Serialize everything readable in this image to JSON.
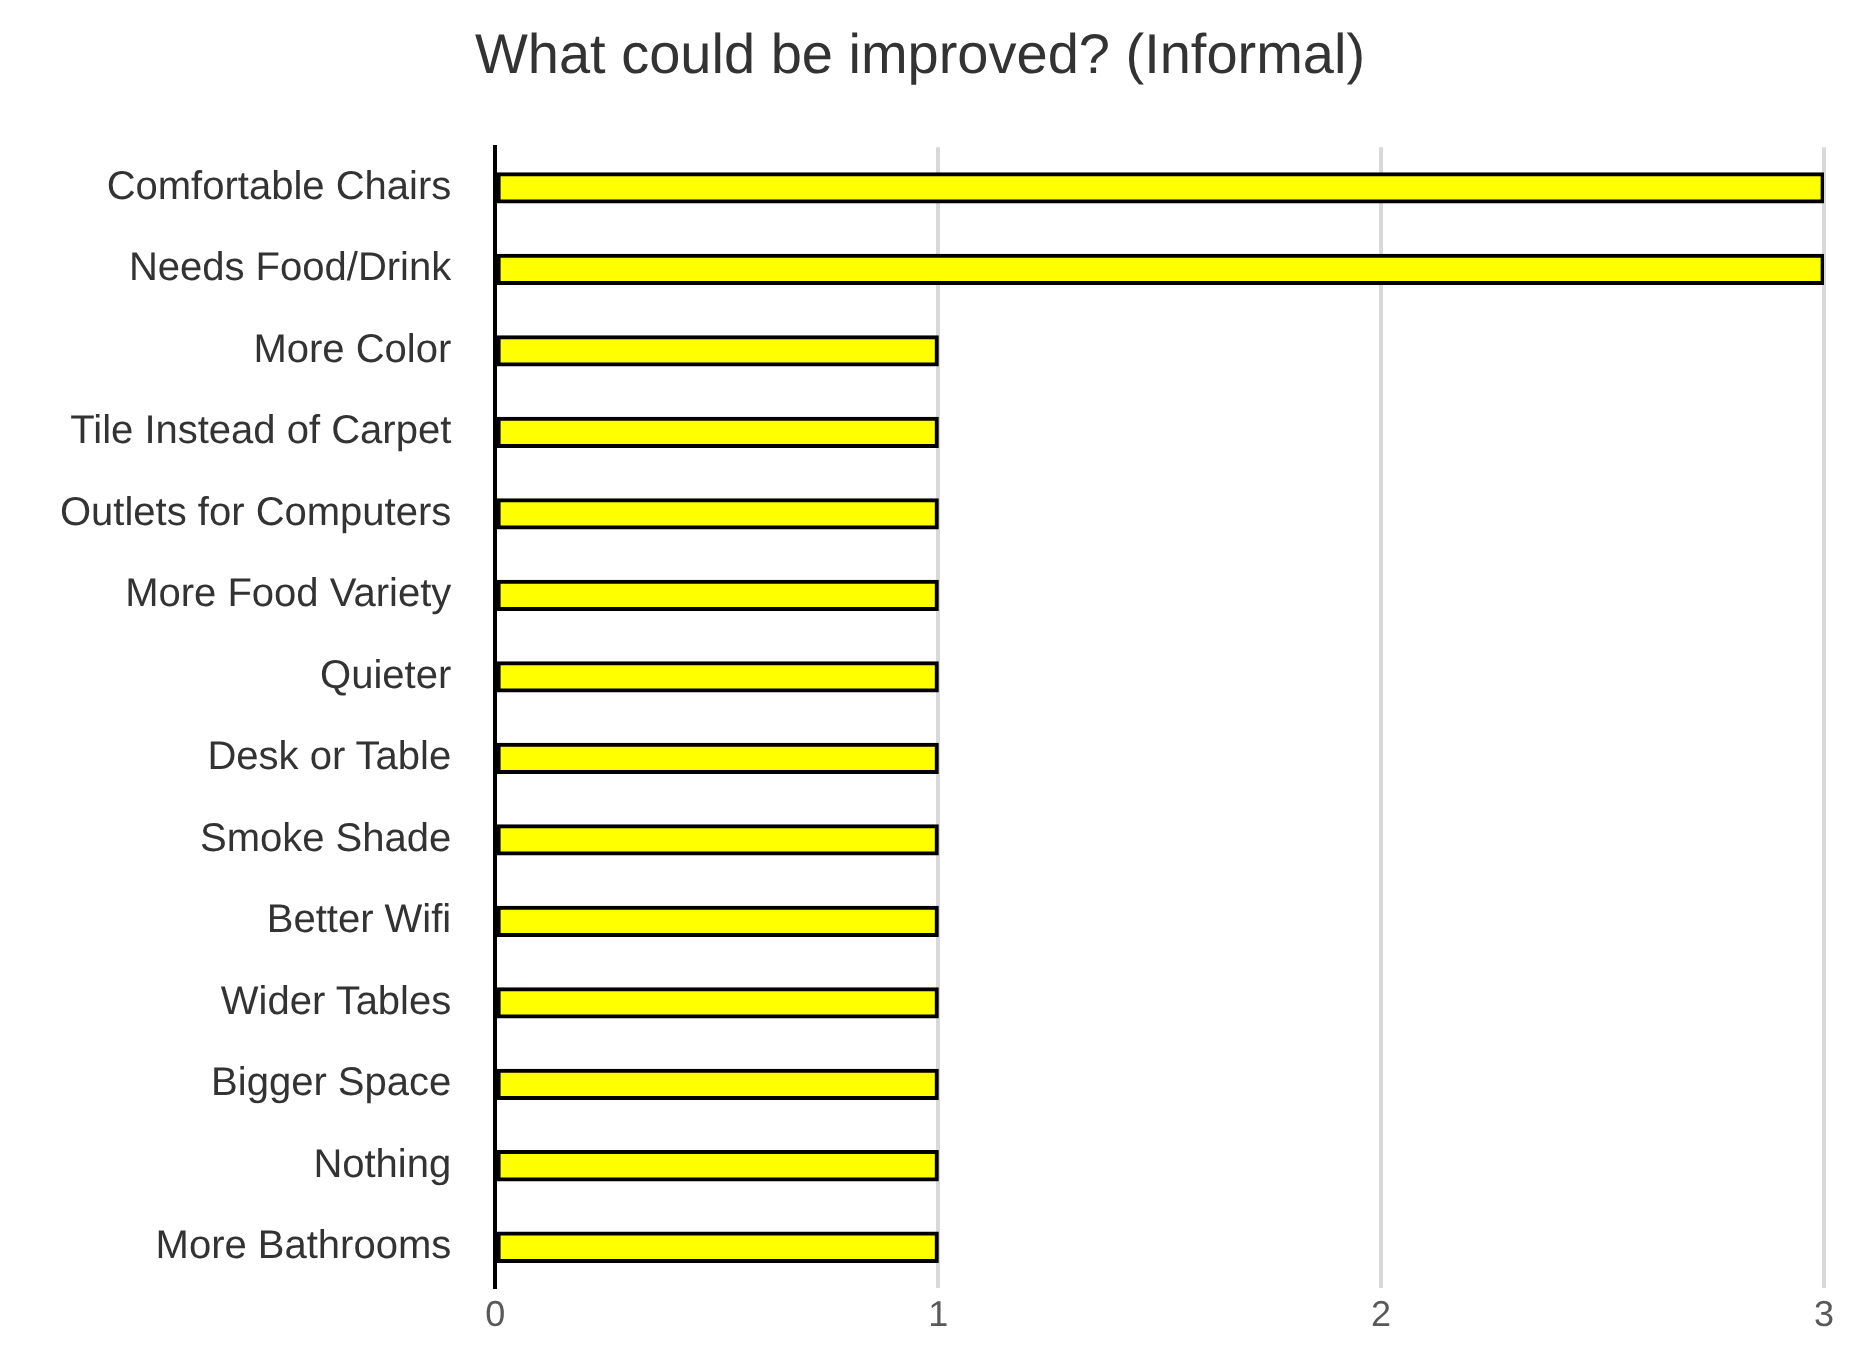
{
  "chart_data": {
    "type": "bar",
    "orientation": "horizontal",
    "title": "What could be improved? (Informal)",
    "categories": [
      "Comfortable Chairs",
      "Needs Food/Drink",
      "More Color",
      "Tile Instead of Carpet",
      "Outlets for Computers",
      "More Food Variety",
      "Quieter",
      "Desk or Table",
      "Smoke Shade",
      "Better Wifi",
      "Wider Tables",
      "Bigger Space",
      "Nothing",
      "More Bathrooms"
    ],
    "values": [
      3,
      3,
      1,
      1,
      1,
      1,
      1,
      1,
      1,
      1,
      1,
      1,
      1,
      1
    ],
    "color": "#ffff00",
    "xlim": [
      0,
      3
    ],
    "xticks": [
      0,
      1,
      2,
      3
    ],
    "grid": "x",
    "legend": false
  }
}
